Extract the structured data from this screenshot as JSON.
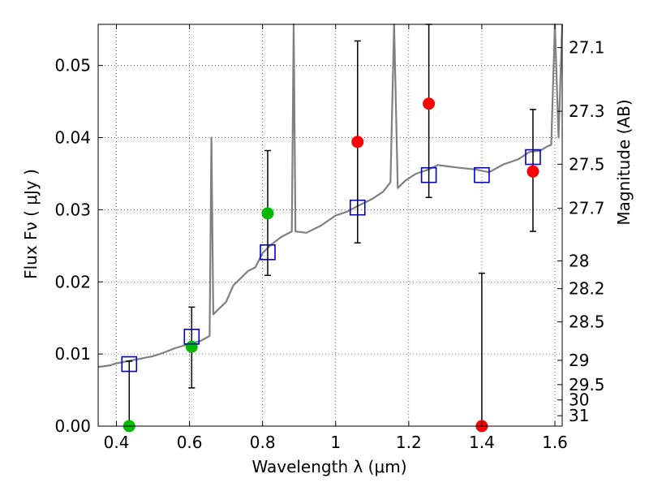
{
  "chart_data": {
    "type": "scatter",
    "xlabel": "Wavelength  λ (μm)",
    "ylabel": "Flux  Fν  ( μJy )",
    "ylabel_right": "Magnitude (AB)",
    "xlim": [
      0.35,
      1.62
    ],
    "ylim": [
      0.0,
      0.0557
    ],
    "grid": true,
    "x_ticks": [
      {
        "value": 0.4,
        "label": "0.4"
      },
      {
        "value": 0.6,
        "label": "0.6"
      },
      {
        "value": 0.8,
        "label": "0.8"
      },
      {
        "value": 1.0,
        "label": "1"
      },
      {
        "value": 1.2,
        "label": "1.2"
      },
      {
        "value": 1.4,
        "label": "1.4"
      },
      {
        "value": 1.6,
        "label": "1.6"
      }
    ],
    "y_ticks": [
      {
        "value": 0.0,
        "label": "0.00"
      },
      {
        "value": 0.01,
        "label": "0.01"
      },
      {
        "value": 0.02,
        "label": "0.02"
      },
      {
        "value": 0.03,
        "label": "0.03"
      },
      {
        "value": 0.04,
        "label": "0.04"
      },
      {
        "value": 0.05,
        "label": "0.05"
      }
    ],
    "magnitude_ticks": [
      {
        "mag": 27.1,
        "label": "27.1"
      },
      {
        "mag": 27.3,
        "label": "27.3"
      },
      {
        "mag": 27.5,
        "label": "27.5"
      },
      {
        "mag": 27.7,
        "label": "27.7"
      },
      {
        "mag": 28.0,
        "label": "28"
      },
      {
        "mag": 28.2,
        "label": "28.2"
      },
      {
        "mag": 28.5,
        "label": "28.5"
      },
      {
        "mag": 29.0,
        "label": "29"
      },
      {
        "mag": 29.5,
        "label": "29.5"
      },
      {
        "mag": 30.0,
        "label": "30"
      },
      {
        "mag": 31.0,
        "label": "31"
      }
    ],
    "colors": {
      "spectrum": "#808080",
      "green_points": "#00bb00",
      "red_points": "#ff0000",
      "model_squares": "#0000cc",
      "error_bars": "#000000"
    },
    "series": [
      {
        "kind": "observed_green",
        "points": [
          {
            "x": 0.435,
            "y": 0.0,
            "err_low": 0.0,
            "err_high": 0.009
          },
          {
            "x": 0.606,
            "y": 0.011,
            "err_low": 0.0053,
            "err_high": 0.0165
          },
          {
            "x": 0.814,
            "y": 0.0295,
            "err_low": 0.0209,
            "err_high": 0.0382
          }
        ]
      },
      {
        "kind": "observed_red",
        "points": [
          {
            "x": 1.06,
            "y": 0.0394,
            "err_low": 0.0254,
            "err_high": 0.0534
          },
          {
            "x": 1.255,
            "y": 0.0447,
            "err_low": 0.0317,
            "err_high": 0.0557
          },
          {
            "x": 1.4,
            "y": 0.0,
            "err_low": 0.0,
            "err_high": 0.0212
          },
          {
            "x": 1.54,
            "y": 0.0353,
            "err_low": 0.027,
            "err_high": 0.0439
          }
        ]
      },
      {
        "kind": "model_photometry",
        "points": [
          {
            "x": 0.435,
            "y": 0.0086
          },
          {
            "x": 0.606,
            "y": 0.0124
          },
          {
            "x": 0.814,
            "y": 0.0241
          },
          {
            "x": 1.06,
            "y": 0.0303
          },
          {
            "x": 1.255,
            "y": 0.0348
          },
          {
            "x": 1.4,
            "y": 0.0348
          },
          {
            "x": 1.54,
            "y": 0.0373
          }
        ]
      },
      {
        "kind": "model_spectrum",
        "x": [
          0.35,
          0.38,
          0.4,
          0.43,
          0.46,
          0.5,
          0.53,
          0.56,
          0.6,
          0.63,
          0.655,
          0.66,
          0.665,
          0.675,
          0.7,
          0.72,
          0.74,
          0.76,
          0.78,
          0.8,
          0.82,
          0.85,
          0.88,
          0.885,
          0.89,
          0.92,
          0.96,
          1.0,
          1.03,
          1.06,
          1.1,
          1.13,
          1.15,
          1.16,
          1.17,
          1.19,
          1.22,
          1.25,
          1.28,
          1.31,
          1.34,
          1.38,
          1.42,
          1.46,
          1.5,
          1.53,
          1.56,
          1.58,
          1.59,
          1.6,
          1.61,
          1.62
        ],
        "y": [
          0.0082,
          0.0084,
          0.0087,
          0.009,
          0.0093,
          0.0097,
          0.0102,
          0.0108,
          0.0114,
          0.0118,
          0.0125,
          0.04,
          0.0155,
          0.016,
          0.0172,
          0.0195,
          0.0205,
          0.0215,
          0.022,
          0.024,
          0.025,
          0.0262,
          0.027,
          0.0557,
          0.027,
          0.0268,
          0.0278,
          0.0292,
          0.0297,
          0.0305,
          0.0315,
          0.0325,
          0.0338,
          0.0557,
          0.033,
          0.034,
          0.035,
          0.0355,
          0.0362,
          0.036,
          0.0358,
          0.0356,
          0.0352,
          0.0363,
          0.037,
          0.038,
          0.0382,
          0.0388,
          0.039,
          0.0557,
          0.04,
          0.0557
        ]
      }
    ]
  }
}
